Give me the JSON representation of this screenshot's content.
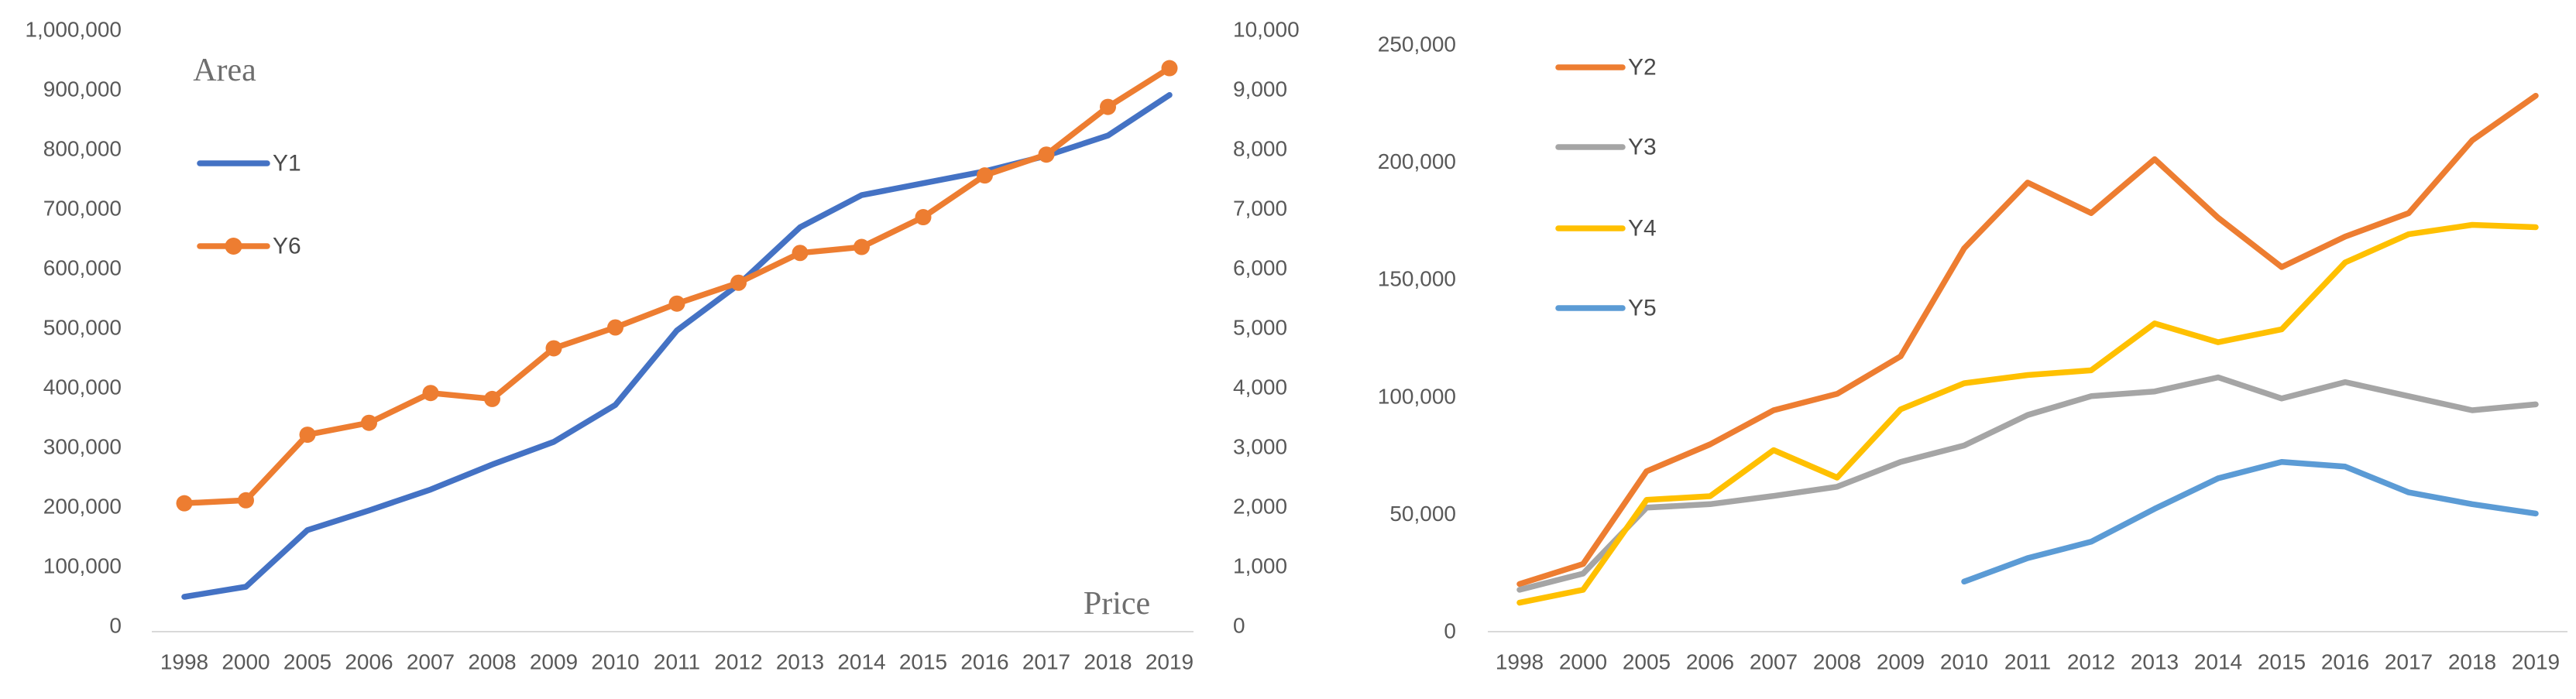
{
  "page": {
    "background": "#ffffff"
  },
  "chart_data": [
    {
      "name": "area-price-chart",
      "type": "line",
      "titles": {
        "left": "Area",
        "right": "Price"
      },
      "grid": false,
      "legend_position": "inside-top-left",
      "categories": [
        "1998",
        "2000",
        "2005",
        "2006",
        "2007",
        "2008",
        "2009",
        "2010",
        "2011",
        "2012",
        "2013",
        "2014",
        "2015",
        "2016",
        "2017",
        "2018",
        "2019"
      ],
      "axes": {
        "left": {
          "min": 0,
          "max": 1000000,
          "tick_labels": [
            "1,000,000",
            "900,000",
            "800,000",
            "700,000",
            "600,000",
            "500,000",
            "400,000",
            "300,000",
            "200,000",
            "100,000",
            "0"
          ]
        },
        "right": {
          "min": 0,
          "max": 10000,
          "tick_labels": [
            "10,000",
            "9,000",
            "8,000",
            "7,000",
            "6,000",
            "5,000",
            "4,000",
            "3,000",
            "2,000",
            "1,000",
            "0"
          ]
        }
      },
      "legend": [
        {
          "label": "Y1",
          "color": "#4472C4",
          "marker": "line"
        },
        {
          "label": "Y6",
          "color": "#ED7D31",
          "marker": "line-circle"
        }
      ],
      "series": [
        {
          "name": "Y1",
          "axis": "left",
          "color": "#4472C4",
          "marker": "none",
          "values": [
            48000,
            65000,
            160000,
            193000,
            228000,
            270000,
            308000,
            370000,
            495000,
            572000,
            668000,
            722000,
            742000,
            762000,
            788000,
            822000,
            890000
          ]
        },
        {
          "name": "Y6",
          "axis": "right",
          "color": "#ED7D31",
          "marker": "circle",
          "values": [
            2050,
            2100,
            3200,
            3400,
            3900,
            3800,
            4650,
            5000,
            5400,
            5750,
            6250,
            6350,
            6850,
            7550,
            7900,
            8700,
            9350
          ]
        }
      ]
    },
    {
      "name": "multi-line-chart",
      "type": "line",
      "titles": {},
      "grid": false,
      "legend_position": "inside-top-left",
      "categories": [
        "1998",
        "2000",
        "2005",
        "2006",
        "2007",
        "2008",
        "2009",
        "2010",
        "2011",
        "2012",
        "2013",
        "2014",
        "2015",
        "2016",
        "2017",
        "2018",
        "2019"
      ],
      "axes": {
        "left": {
          "min": 0,
          "max": 250000,
          "tick_labels": [
            "250,000",
            "200,000",
            "150,000",
            "100,000",
            "50,000",
            "0"
          ]
        }
      },
      "legend": [
        {
          "label": "Y2",
          "color": "#ED7D31",
          "marker": "line"
        },
        {
          "label": "Y3",
          "color": "#A5A5A5",
          "marker": "line"
        },
        {
          "label": "Y4",
          "color": "#FFC000",
          "marker": "line"
        },
        {
          "label": "Y5",
          "color": "#5B9BD5",
          "marker": "line"
        }
      ],
      "series": [
        {
          "name": "Y2",
          "axis": "left",
          "color": "#ED7D31",
          "marker": "none",
          "values": [
            20000,
            28500,
            68000,
            79500,
            94000,
            101000,
            117000,
            163000,
            191000,
            178000,
            201000,
            176000,
            155000,
            168000,
            178000,
            209000,
            228000
          ]
        },
        {
          "name": "Y3",
          "axis": "left",
          "color": "#A5A5A5",
          "marker": "none",
          "values": [
            17500,
            24400,
            52500,
            54000,
            57500,
            61400,
            72000,
            79000,
            92000,
            100000,
            102000,
            108000,
            99000,
            106000,
            100000,
            94000,
            96500
          ]
        },
        {
          "name": "Y4",
          "axis": "left",
          "color": "#FFC000",
          "marker": "none",
          "values": [
            12000,
            17500,
            55800,
            57400,
            77000,
            65300,
            94400,
            105500,
            109000,
            111000,
            131000,
            123000,
            128500,
            157000,
            169000,
            173000,
            172000
          ]
        },
        {
          "name": "Y5",
          "axis": "left",
          "color": "#5B9BD5",
          "marker": "none",
          "values": [
            null,
            null,
            null,
            null,
            null,
            null,
            null,
            21000,
            31000,
            38000,
            52000,
            65000,
            72000,
            70000,
            59000,
            54000,
            50000
          ]
        }
      ]
    }
  ],
  "colors": {
    "axis_line": "#D9D9D9",
    "tick_text": "#595959",
    "legend_text": "#4a4a4a",
    "title_text": "#6e6e6e"
  }
}
